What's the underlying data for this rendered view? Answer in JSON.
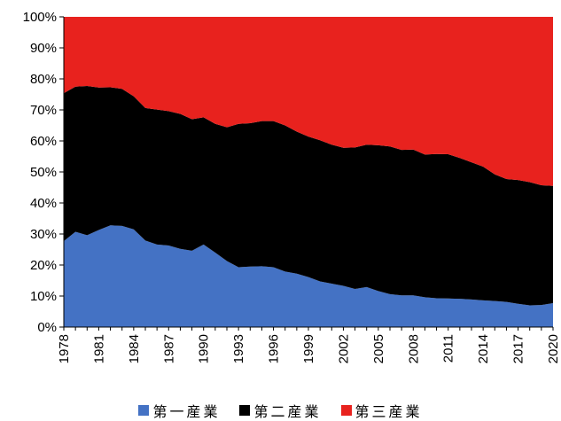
{
  "chart_data": {
    "type": "area",
    "stacked": true,
    "percent": true,
    "x": [
      1978,
      1979,
      1980,
      1981,
      1982,
      1983,
      1984,
      1985,
      1986,
      1987,
      1988,
      1989,
      1990,
      1991,
      1992,
      1993,
      1994,
      1995,
      1996,
      1997,
      1998,
      1999,
      2000,
      2001,
      2002,
      2003,
      2004,
      2005,
      2006,
      2007,
      2008,
      2009,
      2010,
      2011,
      2012,
      2013,
      2014,
      2015,
      2016,
      2017,
      2018,
      2019,
      2020
    ],
    "x_ticks": [
      "1978",
      "1981",
      "1984",
      "1987",
      "1990",
      "1993",
      "1996",
      "1999",
      "2002",
      "2005",
      "2008",
      "2011",
      "2014",
      "2017",
      "2020"
    ],
    "y_ticks": [
      "0%",
      "10%",
      "20%",
      "30%",
      "40%",
      "50%",
      "60%",
      "70%",
      "80%",
      "90%",
      "100%"
    ],
    "ylim": [
      0,
      100
    ],
    "series": [
      {
        "name": "第一産業",
        "color": "#4472c4",
        "values": [
          27.7,
          30.7,
          29.6,
          31.3,
          32.8,
          32.6,
          31.5,
          27.9,
          26.6,
          26.3,
          25.2,
          24.6,
          26.6,
          24.0,
          21.3,
          19.3,
          19.5,
          19.6,
          19.3,
          17.9,
          17.2,
          16.1,
          14.7,
          14.0,
          13.3,
          12.3,
          12.9,
          11.6,
          10.6,
          10.2,
          10.2,
          9.6,
          9.3,
          9.2,
          9.1,
          8.9,
          8.6,
          8.4,
          8.1,
          7.5,
          7.0,
          7.1,
          7.7
        ]
      },
      {
        "name": "第二産業",
        "color": "#000000",
        "values": [
          47.7,
          46.8,
          48.1,
          45.9,
          44.5,
          44.2,
          42.9,
          42.7,
          43.5,
          43.3,
          43.5,
          42.4,
          41.0,
          41.5,
          43.1,
          46.2,
          46.2,
          46.8,
          47.1,
          47.1,
          45.8,
          45.3,
          45.5,
          44.8,
          44.5,
          45.6,
          45.9,
          47.0,
          47.6,
          46.9,
          47.0,
          46.0,
          46.5,
          46.5,
          45.4,
          44.2,
          43.1,
          40.8,
          39.6,
          39.9,
          39.7,
          38.6,
          37.8
        ]
      },
      {
        "name": "第三産業",
        "color": "#e8221e",
        "values": [
          24.6,
          22.5,
          22.3,
          22.8,
          22.7,
          23.2,
          25.6,
          29.4,
          29.9,
          30.4,
          31.3,
          33.0,
          32.4,
          34.5,
          35.6,
          34.5,
          34.3,
          33.6,
          33.6,
          35.0,
          37.0,
          38.6,
          39.8,
          41.2,
          42.2,
          42.1,
          41.2,
          41.4,
          41.8,
          42.9,
          42.8,
          44.4,
          44.2,
          44.3,
          45.5,
          46.9,
          48.3,
          50.8,
          52.3,
          52.6,
          53.3,
          54.3,
          54.5
        ]
      }
    ],
    "title": "",
    "xlabel": "",
    "ylabel": "",
    "legend_position": "bottom",
    "grid": false
  }
}
